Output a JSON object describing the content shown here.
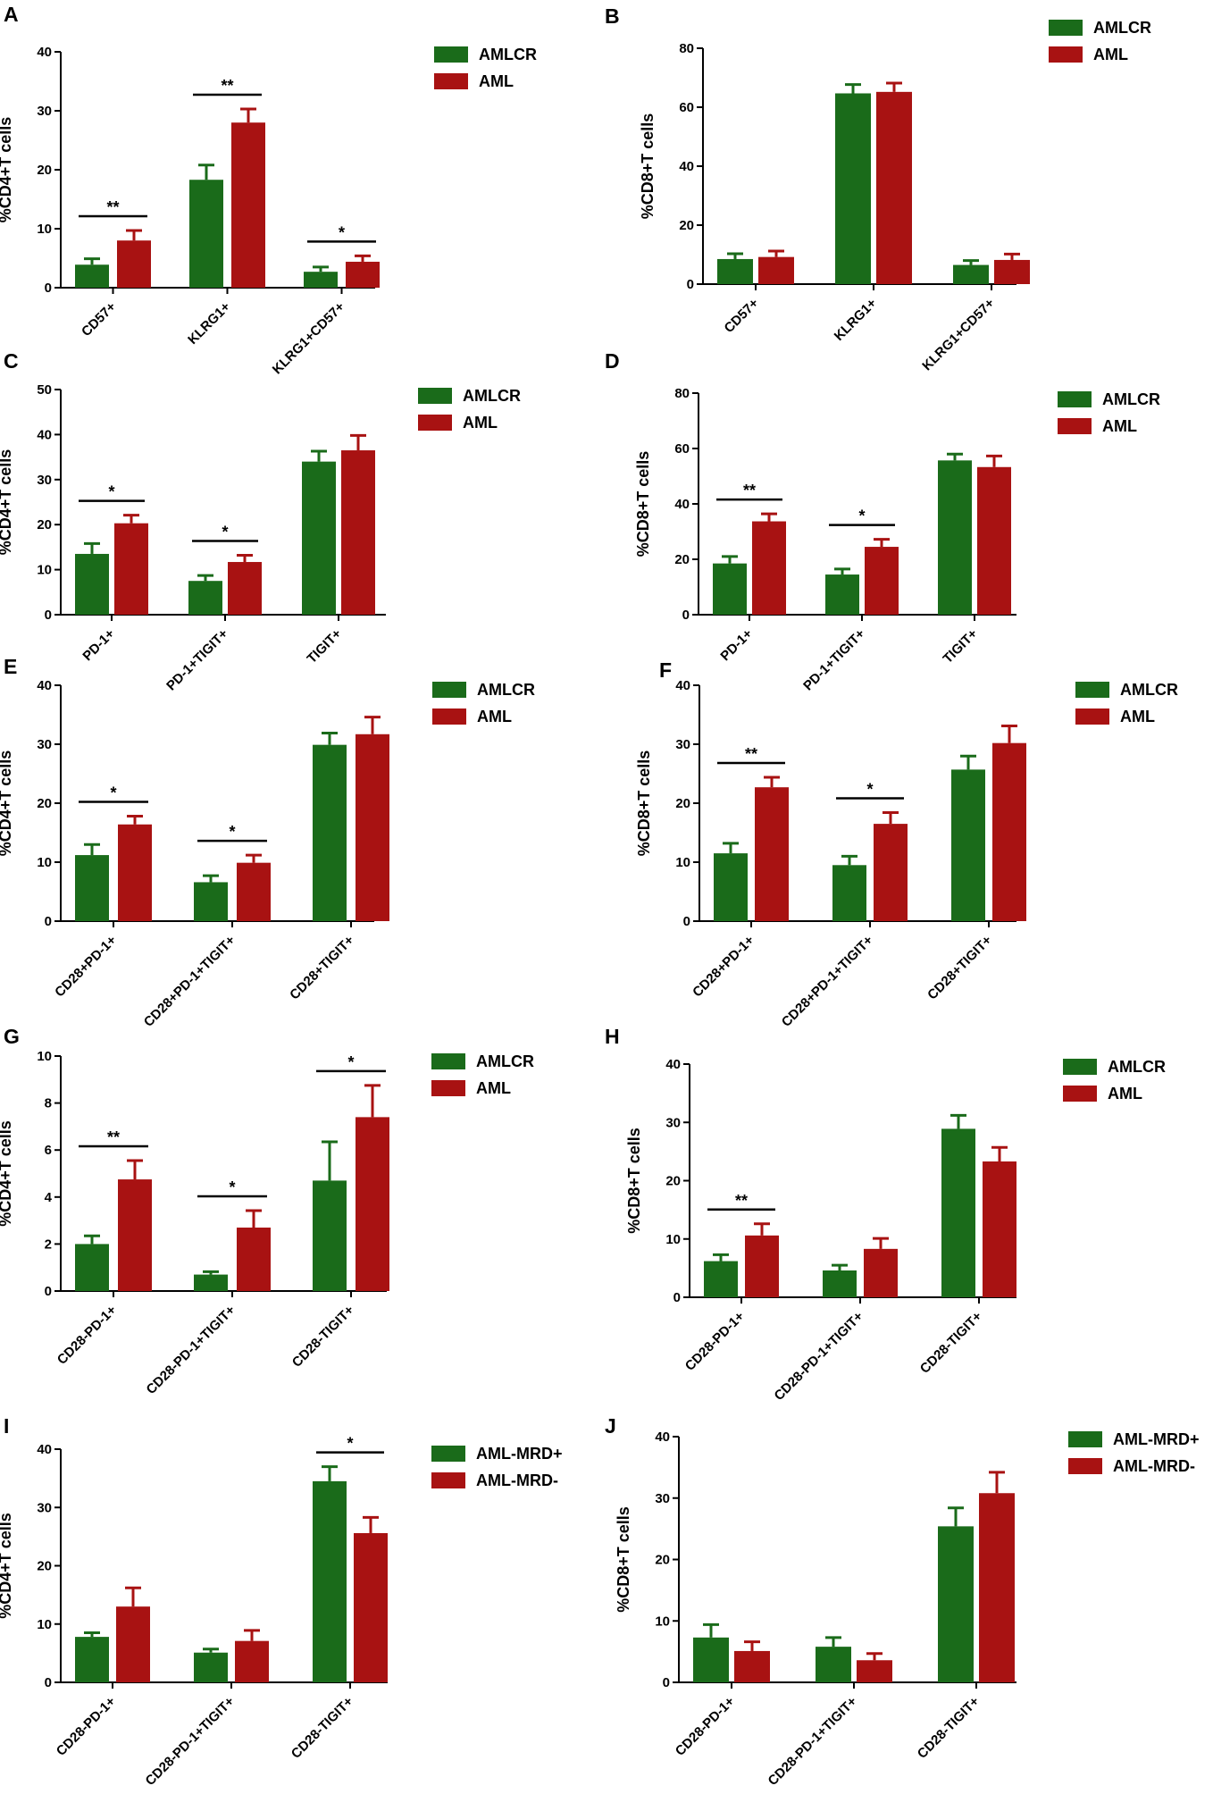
{
  "colors": {
    "group1": "#1a6b1a",
    "group2": "#a81212",
    "axis": "#000000"
  },
  "chart_data": [
    {
      "type": "bar",
      "panel": "A",
      "ylabel": "%CD4+T cells",
      "ylim": [
        0,
        40
      ],
      "yticks": [
        0,
        10,
        20,
        30,
        40
      ],
      "categories": [
        "CD57+",
        "KLRG1+",
        "KLRG1+CD57+"
      ],
      "series": [
        {
          "name": "AMLCR",
          "values": [
            3.9,
            18.3,
            2.7
          ],
          "errors": [
            1.0,
            2.5,
            0.8
          ]
        },
        {
          "name": "AML",
          "values": [
            8.0,
            28.0,
            4.4
          ],
          "errors": [
            1.7,
            2.3,
            1.0
          ]
        }
      ],
      "significance": [
        {
          "category": 0,
          "label": "**"
        },
        {
          "category": 1,
          "label": "**"
        },
        {
          "category": 2,
          "label": "*"
        }
      ]
    },
    {
      "type": "bar",
      "panel": "B",
      "ylabel": "%CD8+T cells",
      "ylim": [
        0,
        80
      ],
      "yticks": [
        0,
        20,
        40,
        60,
        80
      ],
      "categories": [
        "CD57+",
        "KLRG1+",
        "KLRG1+CD57+"
      ],
      "series": [
        {
          "name": "AMLCR",
          "values": [
            8.5,
            64.7,
            6.5
          ],
          "errors": [
            1.8,
            3.0,
            1.5
          ]
        },
        {
          "name": "AML",
          "values": [
            9.2,
            65.2,
            8.2
          ],
          "errors": [
            2.0,
            3.0,
            2.0
          ]
        }
      ],
      "significance": []
    },
    {
      "type": "bar",
      "panel": "C",
      "ylabel": "%CD4+T cells",
      "ylim": [
        0,
        50
      ],
      "yticks": [
        0,
        10,
        20,
        30,
        40,
        50
      ],
      "categories": [
        "PD-1+",
        "PD-1+TIGIT+",
        "TIGIT+"
      ],
      "series": [
        {
          "name": "AMLCR",
          "values": [
            13.5,
            7.5,
            34.0
          ],
          "errors": [
            2.3,
            1.2,
            2.3
          ]
        },
        {
          "name": "AML",
          "values": [
            20.3,
            11.7,
            36.5
          ],
          "errors": [
            1.8,
            1.5,
            3.3
          ]
        }
      ],
      "significance": [
        {
          "category": 0,
          "label": "*"
        },
        {
          "category": 1,
          "label": "*"
        }
      ]
    },
    {
      "type": "bar",
      "panel": "D",
      "ylabel": "%CD8+T cells",
      "ylim": [
        0,
        80
      ],
      "yticks": [
        0,
        20,
        40,
        60,
        80
      ],
      "categories": [
        "PD-1+",
        "PD-1+TIGIT+",
        "TIGIT+"
      ],
      "series": [
        {
          "name": "AMLCR",
          "values": [
            18.5,
            14.5,
            55.7
          ],
          "errors": [
            2.5,
            2.0,
            2.3
          ]
        },
        {
          "name": "AML",
          "values": [
            33.7,
            24.5,
            53.3
          ],
          "errors": [
            2.7,
            2.7,
            4.0
          ]
        }
      ],
      "significance": [
        {
          "category": 0,
          "label": "**"
        },
        {
          "category": 1,
          "label": "*"
        }
      ]
    },
    {
      "type": "bar",
      "panel": "E",
      "ylabel": "%CD4+T cells",
      "ylim": [
        0,
        40
      ],
      "yticks": [
        0,
        10,
        20,
        30,
        40
      ],
      "categories": [
        "CD28+PD-1+",
        "CD28+PD-1+TIGIT+",
        "CD28+TIGIT+"
      ],
      "series": [
        {
          "name": "AMLCR",
          "values": [
            11.2,
            6.6,
            29.9
          ],
          "errors": [
            1.8,
            1.1,
            2.0
          ]
        },
        {
          "name": "AML",
          "values": [
            16.4,
            9.9,
            31.7
          ],
          "errors": [
            1.4,
            1.3,
            2.9
          ]
        }
      ],
      "significance": [
        {
          "category": 0,
          "label": "*"
        },
        {
          "category": 1,
          "label": "*"
        }
      ]
    },
    {
      "type": "bar",
      "panel": "F",
      "ylabel": "%CD8+T cells",
      "ylim": [
        0,
        40
      ],
      "yticks": [
        0,
        10,
        20,
        30,
        40
      ],
      "categories": [
        "CD28+PD-1+",
        "CD28+PD-1+TIGIT+",
        "CD28+TIGIT+"
      ],
      "series": [
        {
          "name": "AMLCR",
          "values": [
            11.5,
            9.5,
            25.7
          ],
          "errors": [
            1.7,
            1.5,
            2.3
          ]
        },
        {
          "name": "AML",
          "values": [
            22.7,
            16.5,
            30.2
          ],
          "errors": [
            1.7,
            1.9,
            2.9
          ]
        }
      ],
      "significance": [
        {
          "category": 0,
          "label": "**"
        },
        {
          "category": 1,
          "label": "*"
        }
      ]
    },
    {
      "type": "bar",
      "panel": "G",
      "ylabel": "%CD4+T cells",
      "ylim": [
        0,
        10
      ],
      "yticks": [
        0,
        2,
        4,
        6,
        8,
        10
      ],
      "categories": [
        "CD28-PD-1+",
        "CD28-PD-1+TIGIT+",
        "CD28-TIGIT+"
      ],
      "series": [
        {
          "name": "AMLCR",
          "values": [
            2.0,
            0.7,
            4.7
          ],
          "errors": [
            0.35,
            0.12,
            1.65
          ]
        },
        {
          "name": "AML",
          "values": [
            4.75,
            2.7,
            7.4
          ],
          "errors": [
            0.8,
            0.72,
            1.35
          ]
        }
      ],
      "significance": [
        {
          "category": 0,
          "label": "**"
        },
        {
          "category": 1,
          "label": "*"
        },
        {
          "category": 2,
          "label": "*"
        }
      ]
    },
    {
      "type": "bar",
      "panel": "H",
      "ylabel": "%CD8+T cells",
      "ylim": [
        0,
        40
      ],
      "yticks": [
        0,
        10,
        20,
        30,
        40
      ],
      "categories": [
        "CD28-PD-1+",
        "CD28-PD-1+TIGIT+",
        "CD28-TIGIT+"
      ],
      "series": [
        {
          "name": "AMLCR",
          "values": [
            6.2,
            4.6,
            28.9
          ],
          "errors": [
            1.1,
            0.9,
            2.3
          ]
        },
        {
          "name": "AML",
          "values": [
            10.6,
            8.3,
            23.3
          ],
          "errors": [
            2.0,
            1.8,
            2.4
          ]
        }
      ],
      "significance": [
        {
          "category": 0,
          "label": "**"
        }
      ]
    },
    {
      "type": "bar",
      "panel": "I",
      "ylabel": "%CD4+T cells",
      "ylim": [
        0,
        40
      ],
      "yticks": [
        0,
        10,
        20,
        30,
        40
      ],
      "categories": [
        "CD28-PD-1+",
        "CD28-PD-1+TIGIT+",
        "CD28-TIGIT+"
      ],
      "series": [
        {
          "name": "AML-MRD+",
          "values": [
            7.8,
            5.1,
            34.5
          ],
          "errors": [
            0.7,
            0.6,
            2.5
          ]
        },
        {
          "name": "AML-MRD-",
          "values": [
            13.0,
            7.1,
            25.6
          ],
          "errors": [
            3.2,
            1.8,
            2.7
          ]
        }
      ],
      "significance": [
        {
          "category": 2,
          "label": "*"
        }
      ]
    },
    {
      "type": "bar",
      "panel": "J",
      "ylabel": "%CD8+T cells",
      "ylim": [
        0,
        40
      ],
      "yticks": [
        0,
        10,
        20,
        30,
        40
      ],
      "categories": [
        "CD28-PD-1+",
        "CD28-PD-1+TIGIT+",
        "CD28-TIGIT+"
      ],
      "series": [
        {
          "name": "AML-MRD+",
          "values": [
            7.3,
            5.8,
            25.4
          ],
          "errors": [
            2.1,
            1.5,
            3.0
          ]
        },
        {
          "name": "AML-MRD-",
          "values": [
            5.1,
            3.6,
            30.8
          ],
          "errors": [
            1.5,
            1.1,
            3.4
          ]
        }
      ],
      "significance": []
    }
  ]
}
